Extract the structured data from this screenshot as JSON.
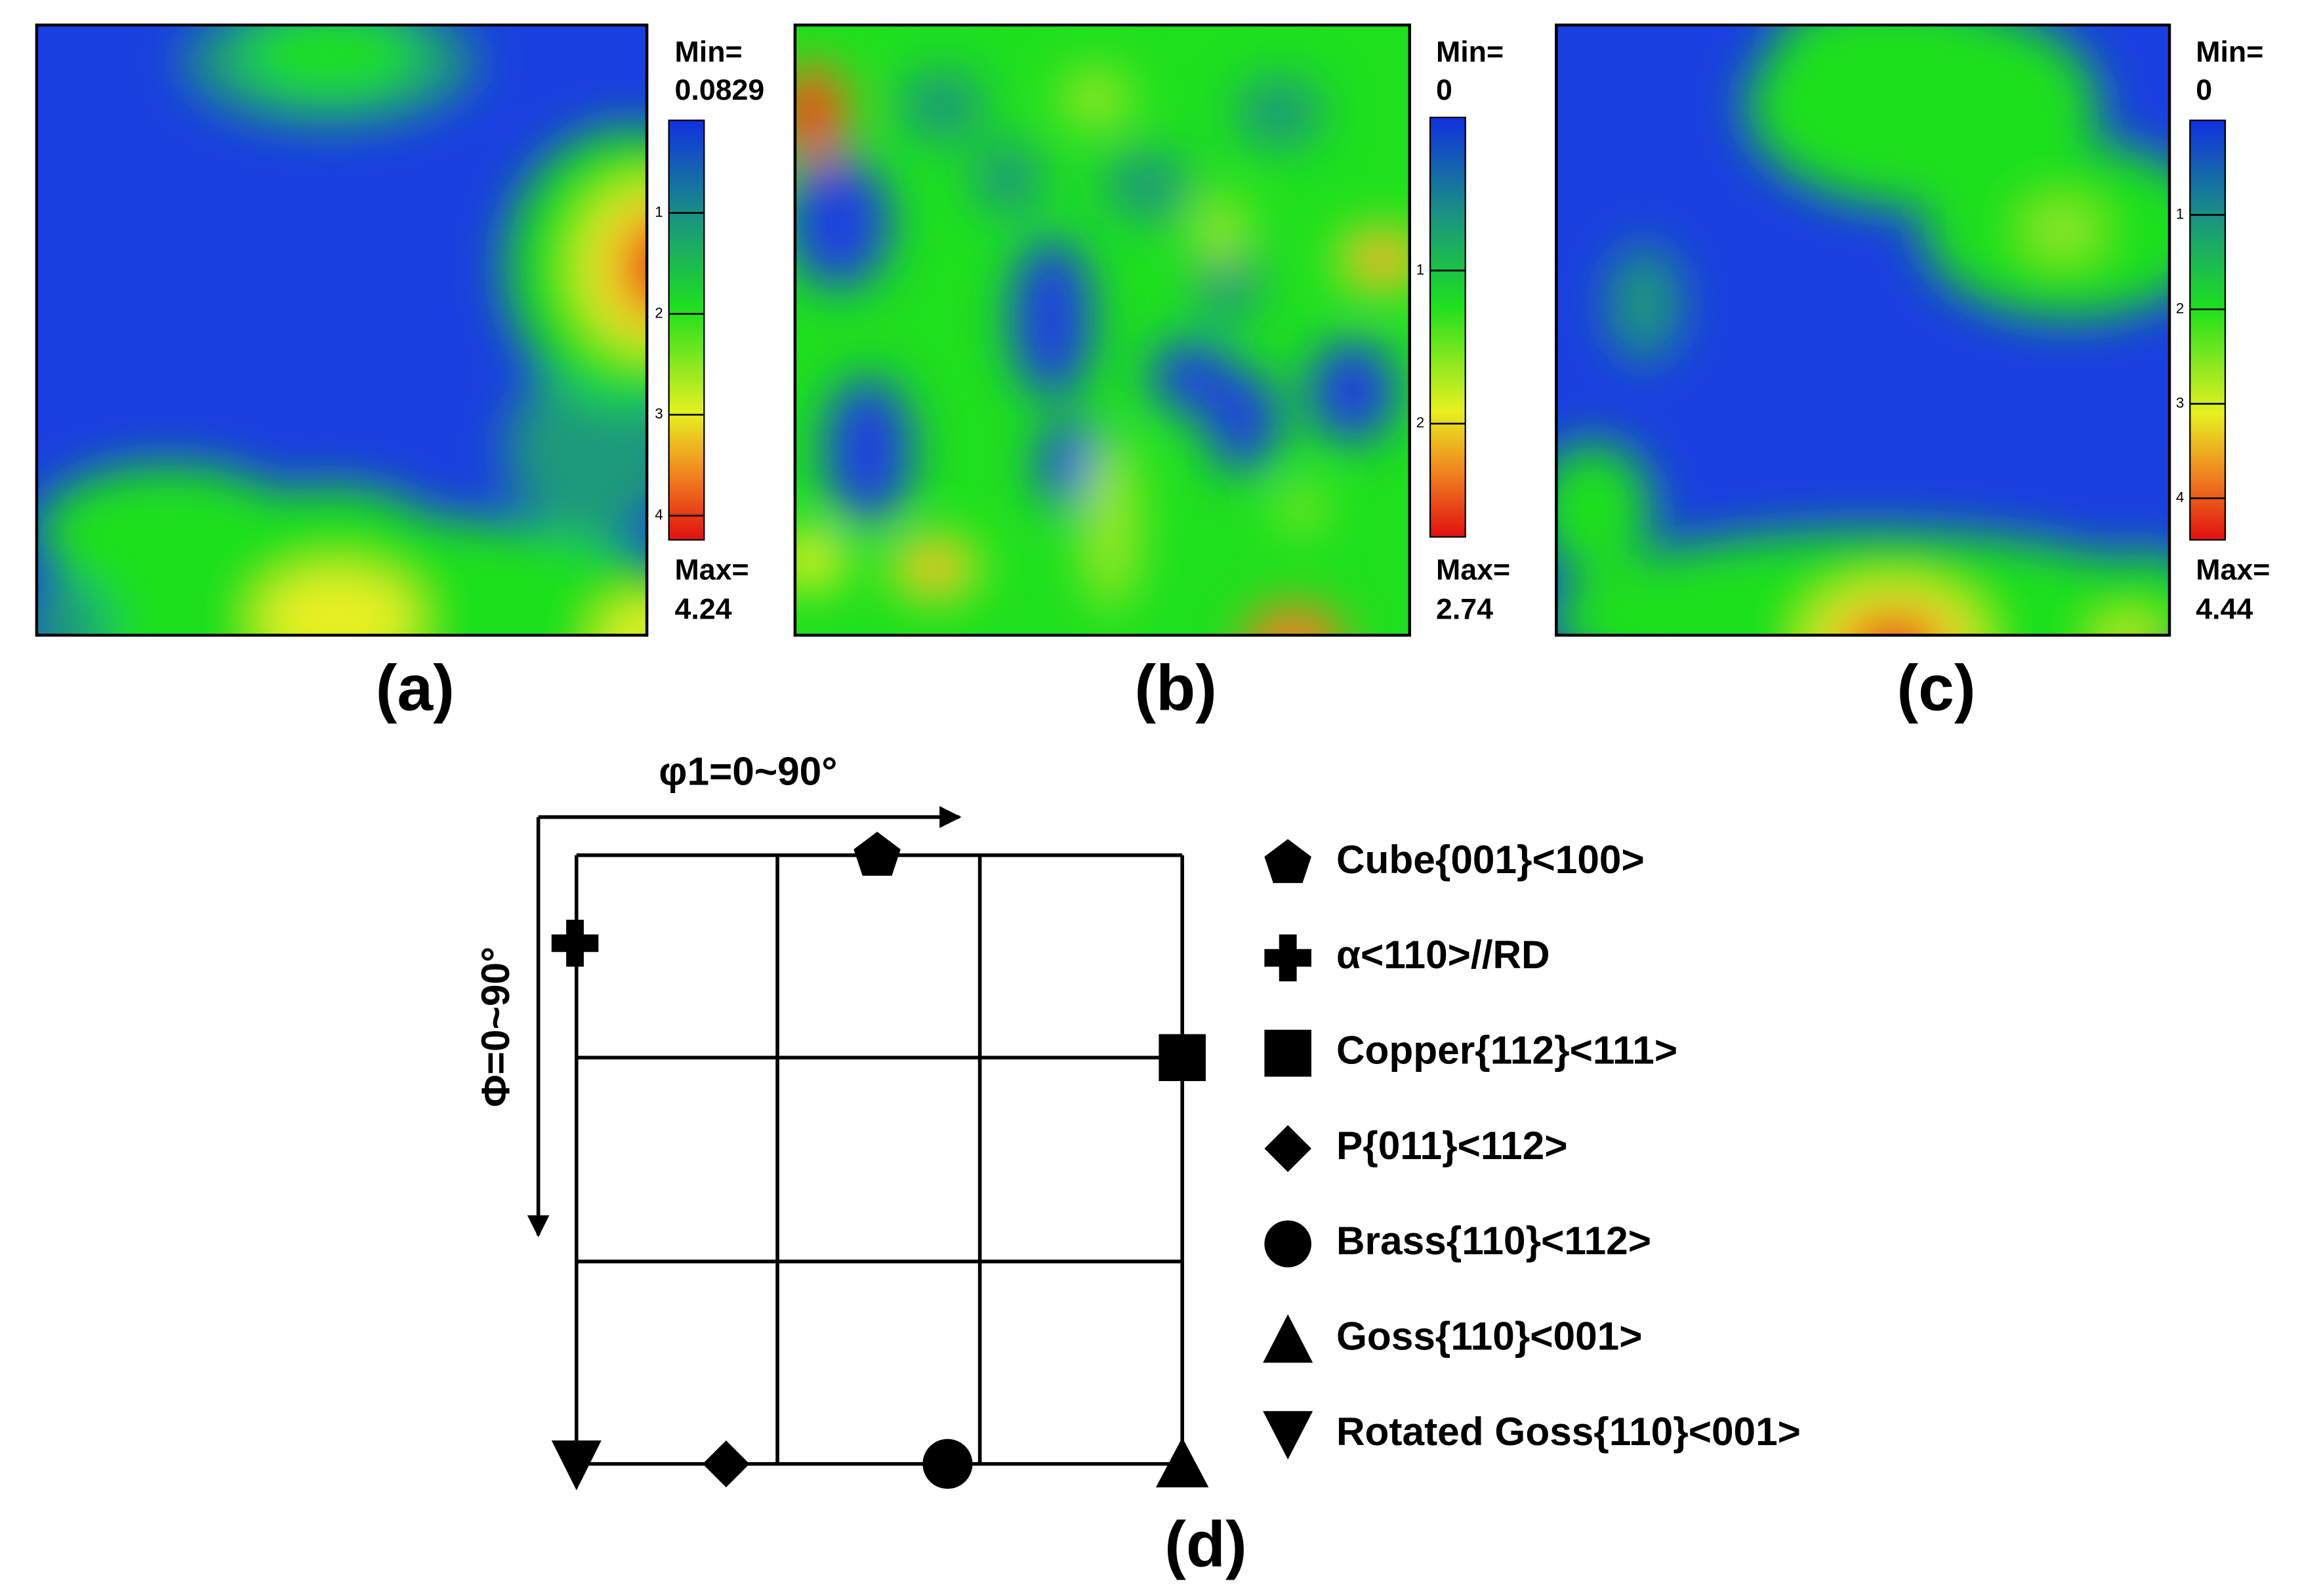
{
  "panels": [
    {
      "label": "(a)",
      "min_label": "Min=",
      "min": 0.0829,
      "max_label": "Max=",
      "max": 4.24,
      "colorbar_ticks": [
        1,
        2,
        3,
        4
      ]
    },
    {
      "label": "(b)",
      "min_label": "Min=",
      "min": 0,
      "max_label": "Max=",
      "max": 2.74,
      "colorbar_ticks": [
        1,
        2
      ]
    },
    {
      "label": "(c)",
      "min_label": "Min=",
      "min": 0,
      "max_label": "Max=",
      "max": 4.44,
      "colorbar_ticks": [
        1,
        2,
        3,
        4
      ]
    }
  ],
  "diagram": {
    "label": "(d)",
    "x_axis": "φ1=0~90°",
    "y_axis": "Φ=0~90°",
    "legend": [
      "Cube{001}<100>",
      "α<110>//RD",
      "Copper{112}<111>",
      "P{011}<112>",
      "Brass{110}<112>",
      "Goss{110}<001>",
      "Rotated Goss{110}<001>"
    ]
  }
}
